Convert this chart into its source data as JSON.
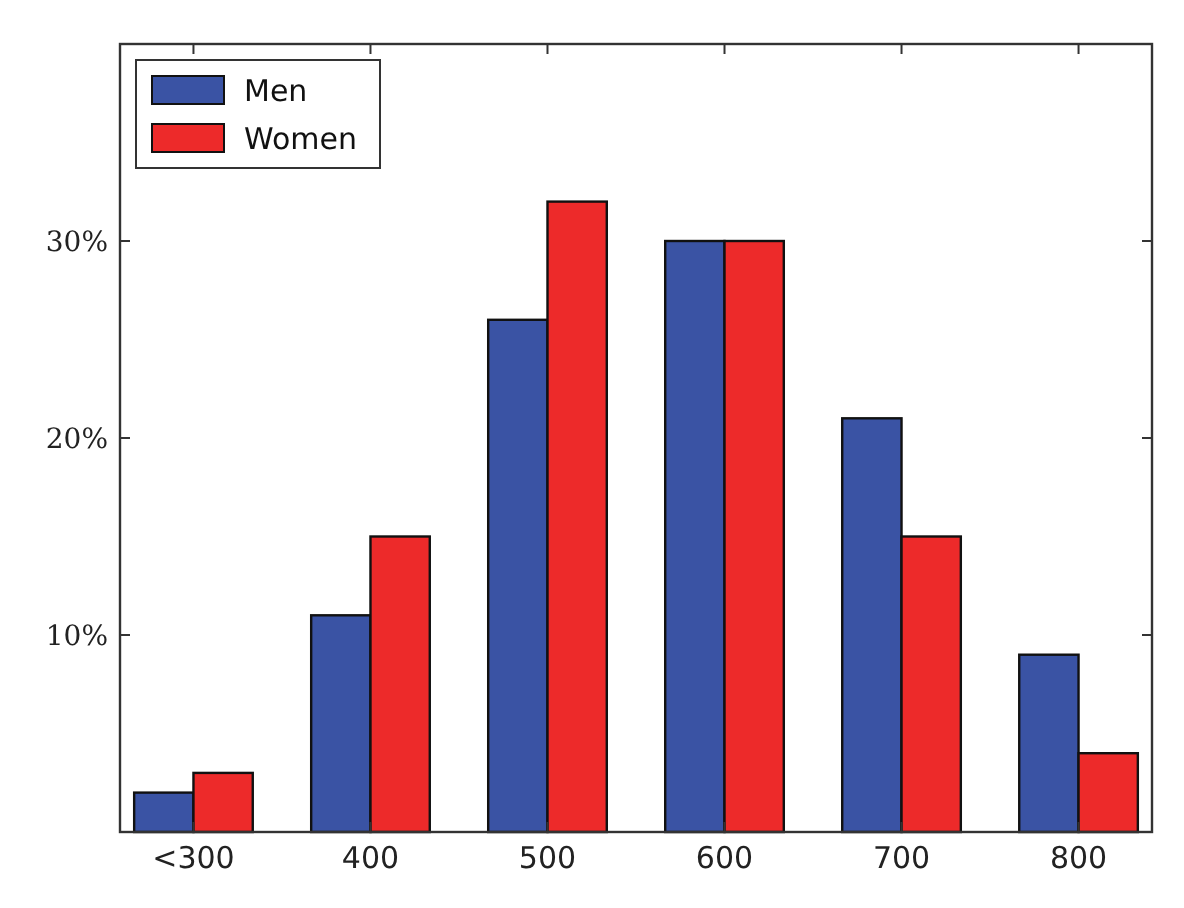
{
  "chart_data": {
    "type": "bar",
    "categories": [
      "<300",
      "400",
      "500",
      "600",
      "700",
      "800"
    ],
    "series": [
      {
        "name": "Men",
        "color": "#3a53a4",
        "values": [
          2,
          11,
          26,
          30,
          21,
          9
        ]
      },
      {
        "name": "Women",
        "color": "#ed2a2a",
        "values": [
          3,
          15,
          32,
          30,
          15,
          4
        ]
      }
    ],
    "ylim": [
      0,
      40
    ],
    "yticks": [
      {
        "value": 10,
        "label": "10%"
      },
      {
        "value": 20,
        "label": "20%"
      },
      {
        "value": 30,
        "label": "30%"
      }
    ],
    "grid": false,
    "legend": "top left"
  }
}
